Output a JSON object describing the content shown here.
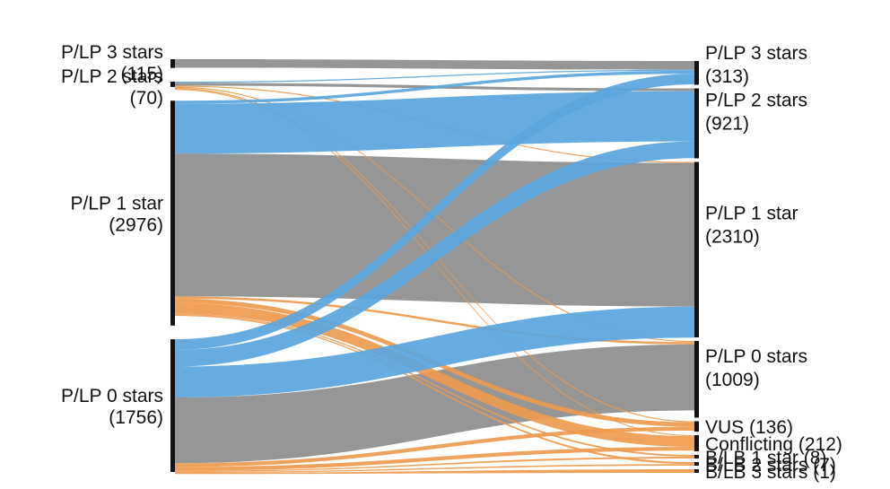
{
  "chart_data": {
    "type": "sankey",
    "colors": {
      "gained_stars": "#5aa5de",
      "same_stars": "#969696",
      "lost_stars": "#ee9a4e",
      "node_bar": "#111111"
    },
    "left_nodes": [
      {
        "id": "L3",
        "label": "P/LP 3 stars",
        "count_text": "(115)",
        "value": 115
      },
      {
        "id": "L2",
        "label": "P/LP 2 stars",
        "count_text": "(70)",
        "value": 70
      },
      {
        "id": "L1",
        "label": "P/LP 1 star",
        "count_text": "(2976)",
        "value": 2976
      },
      {
        "id": "L0",
        "label": "P/LP 0 stars",
        "count_text": "(1756)",
        "value": 1756
      }
    ],
    "right_nodes": [
      {
        "id": "R3",
        "label": "P/LP 3 stars",
        "count_text": "(313)",
        "value": 313
      },
      {
        "id": "R2",
        "label": "P/LP 2 stars",
        "count_text": "(921)",
        "value": 921
      },
      {
        "id": "R1",
        "label": "P/LP 1 star",
        "count_text": "(2310)",
        "value": 2310
      },
      {
        "id": "R0",
        "label": "P/LP 0 stars",
        "count_text": "(1009)",
        "value": 1009
      },
      {
        "id": "RV",
        "label": "VUS (136)",
        "count_text": "",
        "value": 136
      },
      {
        "id": "RC",
        "label": "Conflicting (212)",
        "count_text": "",
        "value": 212
      },
      {
        "id": "RB1",
        "label": "B/LB 1 star (8)",
        "count_text": "",
        "value": 8
      },
      {
        "id": "RB2",
        "label": "B/LB 2 stars (7)",
        "count_text": "",
        "value": 7
      },
      {
        "id": "RB3",
        "label": "B/LB 3 stars (1)",
        "count_text": "",
        "value": 1
      }
    ],
    "flows": [
      {
        "from": "L3",
        "to": "R3",
        "value": 113,
        "kind": "same_stars"
      },
      {
        "from": "L2",
        "to": "R3",
        "value": 15,
        "kind": "gained_stars"
      },
      {
        "from": "L2",
        "to": "R2",
        "value": 38,
        "kind": "same_stars"
      },
      {
        "from": "L2",
        "to": "R1",
        "value": 4,
        "kind": "lost_stars"
      },
      {
        "from": "L2",
        "to": "R0",
        "value": 4,
        "kind": "lost_stars"
      },
      {
        "from": "L2",
        "to": "RV",
        "value": 4,
        "kind": "lost_stars"
      },
      {
        "from": "L2",
        "to": "RC",
        "value": 5,
        "kind": "lost_stars"
      },
      {
        "from": "L1",
        "to": "R3",
        "value": 40,
        "kind": "gained_stars"
      },
      {
        "from": "L1",
        "to": "R2",
        "value": 660,
        "kind": "gained_stars"
      },
      {
        "from": "L1",
        "to": "R1",
        "value": 1890,
        "kind": "same_stars"
      },
      {
        "from": "L1",
        "to": "R0",
        "value": 30,
        "kind": "lost_stars"
      },
      {
        "from": "L1",
        "to": "RV",
        "value": 60,
        "kind": "lost_stars"
      },
      {
        "from": "L1",
        "to": "RC",
        "value": 140,
        "kind": "lost_stars"
      },
      {
        "from": "L1",
        "to": "RB1",
        "value": 4,
        "kind": "lost_stars"
      },
      {
        "from": "L1",
        "to": "RB2",
        "value": 4,
        "kind": "lost_stars"
      },
      {
        "from": "L0",
        "to": "R3",
        "value": 140,
        "kind": "gained_stars"
      },
      {
        "from": "L0",
        "to": "R2",
        "value": 220,
        "kind": "gained_stars"
      },
      {
        "from": "L0",
        "to": "R1",
        "value": 410,
        "kind": "gained_stars"
      },
      {
        "from": "L0",
        "to": "R0",
        "value": 870,
        "kind": "same_stars"
      },
      {
        "from": "L0",
        "to": "RV",
        "value": 50,
        "kind": "lost_stars"
      },
      {
        "from": "L0",
        "to": "RC",
        "value": 50,
        "kind": "lost_stars"
      },
      {
        "from": "L0",
        "to": "RB1",
        "value": 4,
        "kind": "lost_stars"
      },
      {
        "from": "L0",
        "to": "RB2",
        "value": 3,
        "kind": "lost_stars"
      },
      {
        "from": "L0",
        "to": "RB3",
        "value": 1,
        "kind": "lost_stars"
      }
    ]
  }
}
